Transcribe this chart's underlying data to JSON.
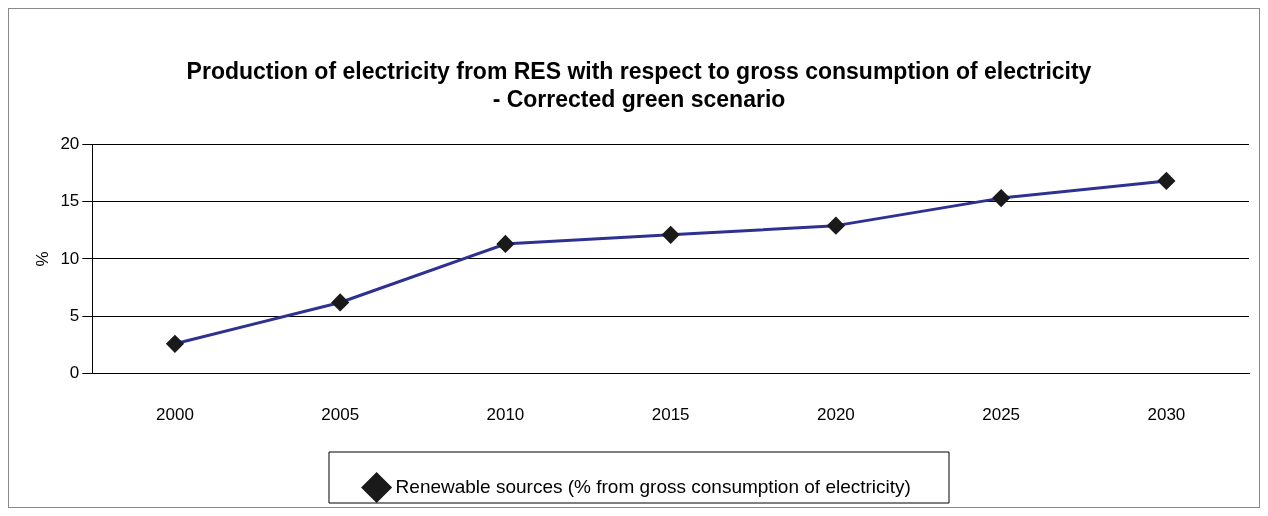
{
  "chart_data": {
    "type": "line",
    "title": [
      "Production of electricity from RES with respect to gross consumption of electricity",
      "- Corrected green scenario"
    ],
    "ylabel": "%",
    "categories": [
      "2000",
      "2005",
      "2010",
      "2015",
      "2020",
      "2025",
      "2030"
    ],
    "series": [
      {
        "name": "Renewable sources (% from gross consumption of electricity)",
        "color": "#2e3192",
        "values": [
          2.6,
          6.2,
          11.3,
          12.1,
          12.9,
          15.3,
          16.8
        ]
      }
    ],
    "ylim": [
      0,
      20
    ],
    "yticks": [
      0,
      5,
      10,
      15,
      20
    ],
    "grid": "y",
    "legend": "bottom",
    "marker": "diamond",
    "line_style": "solid"
  }
}
